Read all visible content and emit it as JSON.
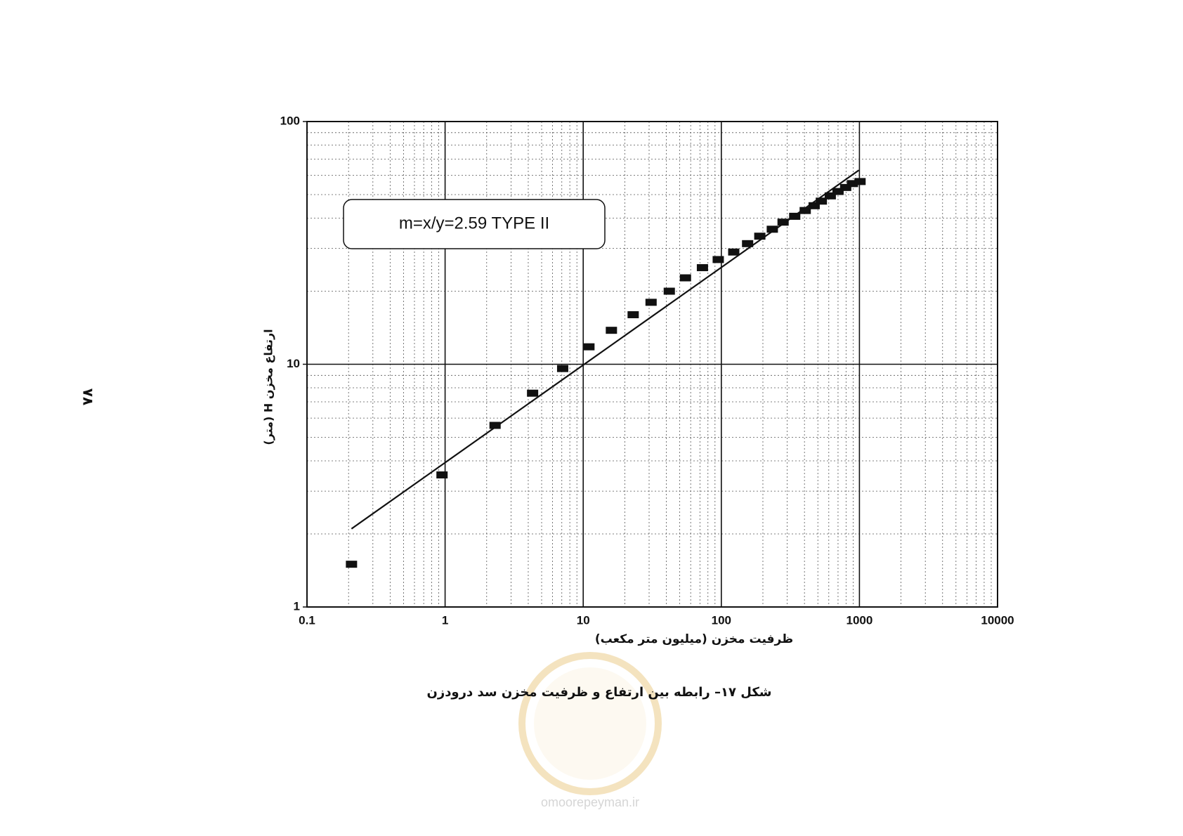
{
  "page_number": "۷۸",
  "chart_data": {
    "type": "scatter",
    "annotation": "m=x/y=2.59  TYPE II",
    "x_label": "ظرفیت مخزن (میلیون متر مکعب)",
    "y_label": "ارتفاع مخزن H (متر)",
    "caption": "شکل ۱۷– رابطه بین ارتفاع و ظرفیت مخزن سد درودزن",
    "x_log": true,
    "y_log": true,
    "grid": true,
    "minor_grid": true,
    "color": "#111111",
    "xlim": [
      0.1,
      10000
    ],
    "ylim": [
      1,
      100
    ],
    "xticks": [
      0.1,
      1,
      10,
      100,
      1000,
      10000
    ],
    "yticks": [
      1,
      10,
      100
    ],
    "points": {
      "x": [
        0.21,
        0.95,
        2.3,
        4.3,
        7.1,
        11,
        16,
        23,
        31,
        42,
        55,
        73,
        95,
        123,
        155,
        190,
        234,
        280,
        340,
        405,
        470,
        530,
        615,
        700,
        795,
        890,
        1010
      ],
      "y": [
        1.5,
        3.5,
        5.6,
        7.6,
        9.6,
        11.8,
        13.8,
        16,
        18,
        20,
        22.7,
        25,
        27,
        29,
        31.4,
        33.7,
        36,
        38.5,
        40.7,
        43,
        45,
        47,
        49.4,
        51.5,
        53.5,
        55.5,
        56.6
      ]
    },
    "fit_line": {
      "x": [
        0.21,
        990
      ],
      "y": [
        2.1,
        63
      ]
    }
  },
  "watermark": {
    "text": "omoorepeyman.ir"
  }
}
